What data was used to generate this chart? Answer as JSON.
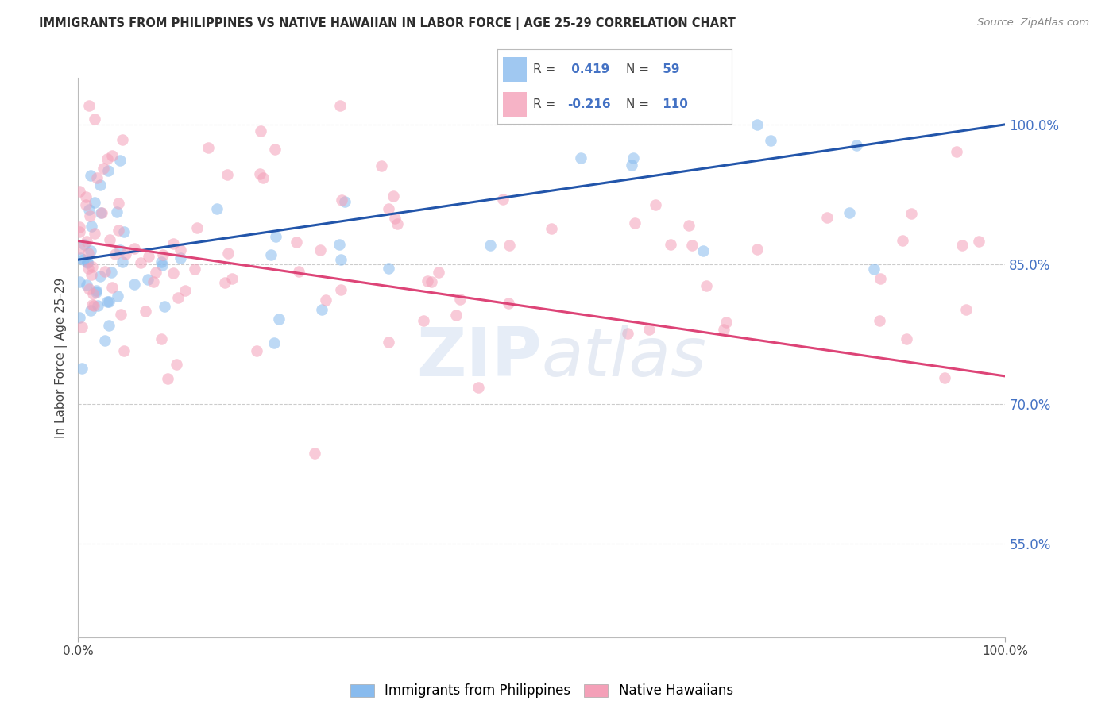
{
  "title": "IMMIGRANTS FROM PHILIPPINES VS NATIVE HAWAIIAN IN LABOR FORCE | AGE 25-29 CORRELATION CHART",
  "source_text": "Source: ZipAtlas.com",
  "ylabel": "In Labor Force | Age 25-29",
  "blue_R": 0.419,
  "blue_N": 59,
  "pink_R": -0.216,
  "pink_N": 110,
  "xlim": [
    0.0,
    1.0
  ],
  "ylim": [
    0.45,
    1.05
  ],
  "yticks": [
    0.55,
    0.7,
    0.85,
    1.0
  ],
  "ytick_labels": [
    "55.0%",
    "70.0%",
    "85.0%",
    "100.0%"
  ],
  "xtick_labels": [
    "0.0%",
    "100.0%"
  ],
  "title_color": "#2d2d2d",
  "source_color": "#888888",
  "blue_color": "#88bbee",
  "pink_color": "#f4a0b8",
  "blue_line_color": "#2255aa",
  "pink_line_color": "#dd4477",
  "right_axis_color": "#4472c4",
  "grid_color": "#cccccc",
  "legend_label_blue": "Immigrants from Philippines",
  "legend_label_pink": "Native Hawaiians",
  "background_color": "#ffffff"
}
